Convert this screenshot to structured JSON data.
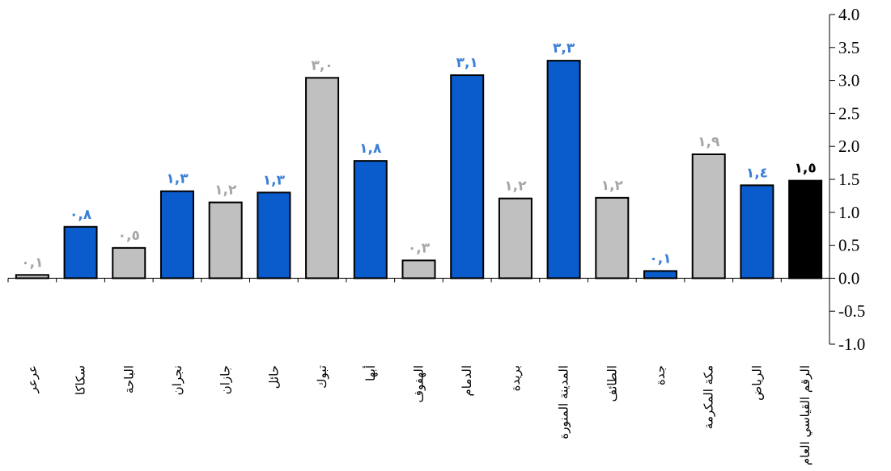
{
  "chart_data": {
    "type": "bar",
    "title": "",
    "xlabel": "",
    "ylabel": "",
    "ylim": [
      -1.0,
      4.0
    ],
    "y_ticks": [
      4.0,
      3.5,
      3.0,
      2.5,
      2.0,
      1.5,
      1.0,
      0.5,
      0.0,
      -0.5,
      -1.0
    ],
    "y_tick_labels": [
      "4.0",
      "3.5",
      "3.0",
      "2.5",
      "2.0",
      "1.5",
      "1.0",
      "0.5",
      "0.0",
      "-0.5",
      "-1.0"
    ],
    "y_axis_position": "right",
    "grid": false,
    "legend": "none",
    "categories": [
      "عرعر",
      "سكاكا",
      "الباحة",
      "نجران",
      "جازان",
      "حائل",
      "تبوك",
      "أبها",
      "الهفوف",
      "الدمام",
      "بريدة",
      "المدينة المنورة",
      "الطائف",
      "جدة",
      "مكة المكرمة",
      "الرياض",
      "الرقم القياسي العام"
    ],
    "values": [
      0.05,
      0.78,
      0.46,
      1.32,
      1.15,
      1.3,
      3.04,
      1.78,
      0.27,
      3.08,
      1.21,
      3.3,
      1.22,
      0.11,
      1.88,
      1.41,
      1.48
    ],
    "data_labels": [
      "٠,١",
      "٠,٨",
      "٠,٥",
      "١,٣",
      "١,٢",
      "١,٣",
      "٣,٠",
      "١,٨",
      "٠,٣",
      "٣,١",
      "١,٢",
      "٣,٣",
      "١,٢",
      "٠,١",
      "١,٩",
      "١,٤",
      "١,٥"
    ],
    "bar_colors": [
      "#c0c0c0",
      "#0a5ccc",
      "#c0c0c0",
      "#0a5ccc",
      "#c0c0c0",
      "#0a5ccc",
      "#c0c0c0",
      "#0a5ccc",
      "#c0c0c0",
      "#0a5ccc",
      "#c0c0c0",
      "#0a5ccc",
      "#c0c0c0",
      "#0a5ccc",
      "#c0c0c0",
      "#0a5ccc",
      "#000000"
    ],
    "label_colors": [
      "#a6a6a6",
      "#3a7fd6",
      "#a6a6a6",
      "#3a7fd6",
      "#a6a6a6",
      "#3a7fd6",
      "#a6a6a6",
      "#3a7fd6",
      "#a6a6a6",
      "#3a7fd6",
      "#a6a6a6",
      "#3a7fd6",
      "#a6a6a6",
      "#3a7fd6",
      "#a6a6a6",
      "#3a7fd6",
      "#000000"
    ]
  }
}
